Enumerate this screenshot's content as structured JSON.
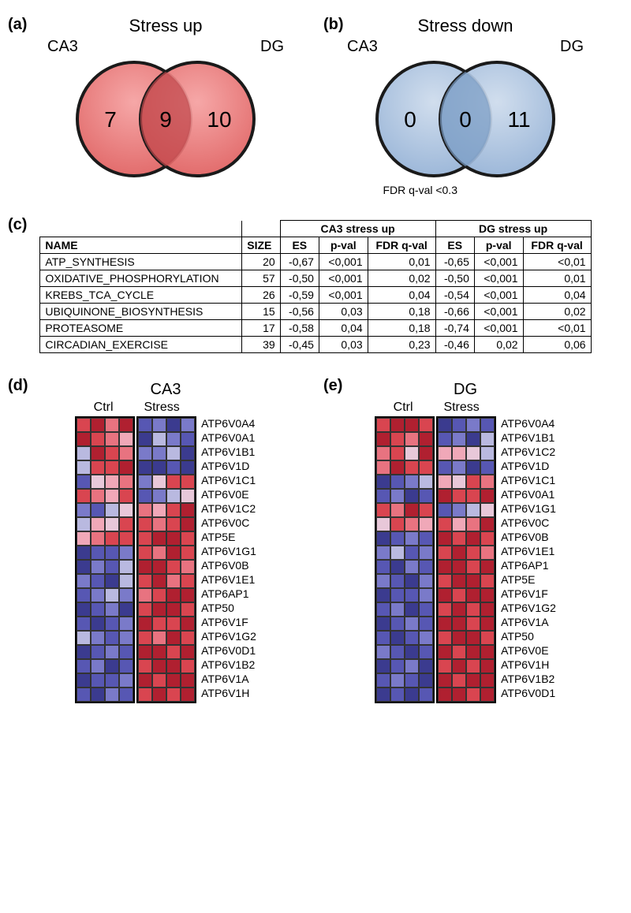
{
  "panels": {
    "a": "(a)",
    "b": "(b)",
    "c": "(c)",
    "d": "(d)",
    "e": "(e)"
  },
  "venn_up": {
    "title": "Stress up",
    "left_label": "CA3",
    "right_label": "DG",
    "left_n": "7",
    "overlap_n": "9",
    "right_n": "10",
    "fill": "#e87374",
    "stroke": "#1a1a1a",
    "overlap_fill": "#c0484d"
  },
  "venn_down": {
    "title": "Stress down",
    "left_label": "CA3",
    "right_label": "DG",
    "left_n": "0",
    "overlap_n": "0",
    "right_n": "11",
    "fill": "#a9c1de",
    "stroke": "#1a1a1a",
    "overlap_fill": "#7a9dc5"
  },
  "fdr_note": "FDR q-val <0.3",
  "table": {
    "group_headers": [
      "",
      "",
      "CA3 stress up",
      "DG stress up"
    ],
    "columns": [
      "NAME",
      "SIZE",
      "ES",
      "p-val",
      "FDR q-val",
      "ES",
      "p-val",
      "FDR q-val"
    ],
    "rows": [
      [
        "ATP_SYNTHESIS",
        "20",
        "-0,67",
        "<0,001",
        "0,01",
        "-0,65",
        "<0,001",
        "<0,01"
      ],
      [
        "OXIDATIVE_PHOSPHORYLATION",
        "57",
        "-0,50",
        "<0,001",
        "0,02",
        "-0,50",
        "<0,001",
        "0,01"
      ],
      [
        "KREBS_TCA_CYCLE",
        "26",
        "-0,59",
        "<0,001",
        "0,04",
        "-0,54",
        "<0,001",
        "0,04"
      ],
      [
        "UBIQUINONE_BIOSYNTHESIS",
        "15",
        "-0,56",
        "0,03",
        "0,18",
        "-0,66",
        "<0,001",
        "0,02"
      ],
      [
        "PROTEASOME",
        "17",
        "-0,58",
        "0,04",
        "0,18",
        "-0,74",
        "<0,001",
        "<0,01"
      ],
      [
        "CIRCADIAN_EXERCISE",
        "39",
        "-0,45",
        "0,03",
        "0,23",
        "-0,46",
        "0,02",
        "0,06"
      ]
    ]
  },
  "heatmap_colors": {
    "palette": [
      "#3b3b8f",
      "#5757b3",
      "#7a7ac9",
      "#b9b9e0",
      "#e8c8d9",
      "#f0a8b8",
      "#e87380",
      "#d94550",
      "#b02030"
    ],
    "border": "#333",
    "group_border": "#000"
  },
  "hm_d": {
    "title": "CA3",
    "ctrl_label": "Ctrl",
    "stress_label": "Stress",
    "n_ctrl": 4,
    "n_stress": 4,
    "genes": [
      "ATP6V0A4",
      "ATP6V0A1",
      "ATP6V1B1",
      "ATP6V1D",
      "ATP6V1C1",
      "ATP6V0E",
      "ATP6V1C2",
      "ATP6V0C",
      "ATP5E",
      "ATP6V1G1",
      "ATP6V0B",
      "ATP6V1E1",
      "ATP6AP1",
      "ATP50",
      "ATP6V1F",
      "ATP6V1G2",
      "ATP6V0D1",
      "ATP6V1B2",
      "ATP6V1A",
      "ATP6V1H"
    ],
    "values": [
      [
        7,
        8,
        6,
        8,
        1,
        2,
        0,
        2
      ],
      [
        8,
        7,
        6,
        5,
        0,
        3,
        2,
        1
      ],
      [
        3,
        8,
        7,
        6,
        2,
        2,
        3,
        0
      ],
      [
        3,
        7,
        7,
        8,
        0,
        0,
        1,
        0
      ],
      [
        1,
        4,
        5,
        6,
        2,
        4,
        7,
        7
      ],
      [
        7,
        6,
        5,
        7,
        1,
        2,
        3,
        4
      ],
      [
        2,
        1,
        3,
        4,
        6,
        5,
        7,
        8
      ],
      [
        3,
        5,
        4,
        7,
        7,
        6,
        7,
        8
      ],
      [
        5,
        6,
        7,
        7,
        7,
        8,
        8,
        7
      ],
      [
        0,
        1,
        1,
        2,
        7,
        6,
        8,
        7
      ],
      [
        0,
        2,
        1,
        3,
        8,
        8,
        7,
        6
      ],
      [
        2,
        1,
        0,
        3,
        7,
        8,
        6,
        7
      ],
      [
        1,
        2,
        3,
        2,
        6,
        7,
        8,
        8
      ],
      [
        0,
        1,
        2,
        0,
        7,
        8,
        8,
        7
      ],
      [
        1,
        0,
        1,
        2,
        8,
        7,
        7,
        8
      ],
      [
        3,
        2,
        1,
        2,
        7,
        6,
        8,
        7
      ],
      [
        0,
        1,
        2,
        1,
        8,
        8,
        7,
        8
      ],
      [
        1,
        2,
        0,
        1,
        7,
        8,
        8,
        7
      ],
      [
        0,
        1,
        1,
        2,
        8,
        7,
        8,
        8
      ],
      [
        1,
        0,
        2,
        1,
        7,
        8,
        7,
        8
      ]
    ]
  },
  "hm_e": {
    "title": "DG",
    "ctrl_label": "Ctrl",
    "stress_label": "Stress",
    "n_ctrl": 4,
    "n_stress": 4,
    "genes": [
      "ATP6V0A4",
      "ATP6V1B1",
      "ATP6V1C2",
      "ATP6V1D",
      "ATP6V1C1",
      "ATP6V0A1",
      "ATP6V1G1",
      "ATP6V0C",
      "ATP6V0B",
      "ATP6V1E1",
      "ATP6AP1",
      "ATP5E",
      "ATP6V1F",
      "ATP6V1G2",
      "ATP6V1A",
      "ATP50",
      "ATP6V0E",
      "ATP6V1H",
      "ATP6V1B2",
      "ATP6V0D1"
    ],
    "values": [
      [
        7,
        8,
        8,
        7,
        0,
        1,
        2,
        1
      ],
      [
        8,
        7,
        6,
        8,
        1,
        2,
        0,
        3
      ],
      [
        6,
        7,
        4,
        8,
        5,
        5,
        4,
        3
      ],
      [
        6,
        8,
        7,
        7,
        1,
        2,
        0,
        1
      ],
      [
        0,
        1,
        2,
        3,
        5,
        4,
        7,
        6
      ],
      [
        1,
        2,
        0,
        1,
        8,
        7,
        7,
        8
      ],
      [
        7,
        6,
        8,
        7,
        1,
        2,
        3,
        4
      ],
      [
        4,
        7,
        6,
        5,
        7,
        5,
        6,
        8
      ],
      [
        0,
        1,
        2,
        1,
        8,
        7,
        8,
        7
      ],
      [
        2,
        3,
        1,
        2,
        7,
        8,
        7,
        6
      ],
      [
        1,
        0,
        2,
        1,
        8,
        8,
        7,
        8
      ],
      [
        2,
        1,
        0,
        2,
        7,
        8,
        8,
        7
      ],
      [
        0,
        1,
        1,
        2,
        8,
        7,
        8,
        8
      ],
      [
        1,
        2,
        0,
        1,
        7,
        8,
        7,
        8
      ],
      [
        0,
        1,
        2,
        1,
        8,
        8,
        7,
        8
      ],
      [
        1,
        0,
        1,
        2,
        7,
        8,
        8,
        7
      ],
      [
        2,
        1,
        0,
        1,
        8,
        7,
        8,
        8
      ],
      [
        0,
        1,
        2,
        0,
        7,
        8,
        7,
        8
      ],
      [
        1,
        2,
        1,
        0,
        8,
        7,
        8,
        8
      ],
      [
        0,
        1,
        0,
        1,
        8,
        8,
        7,
        8
      ]
    ]
  }
}
